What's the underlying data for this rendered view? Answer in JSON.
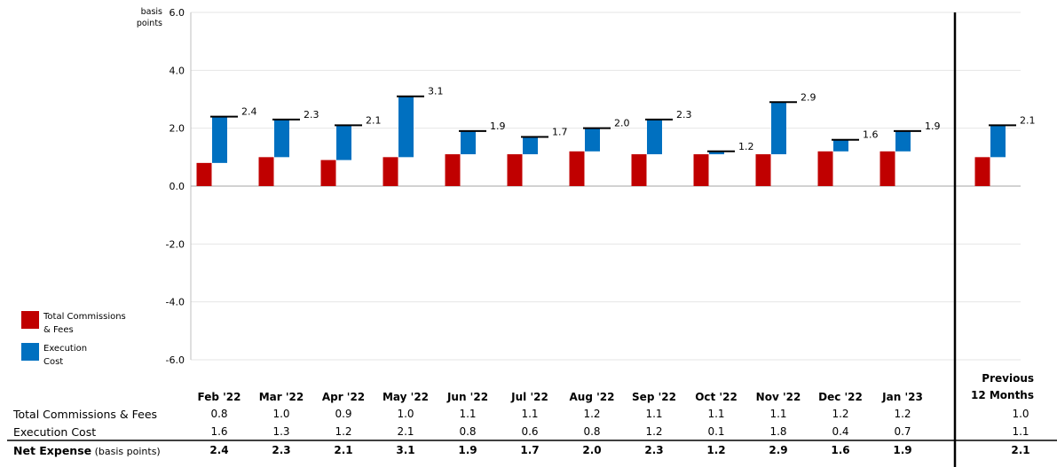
{
  "chart_data": {
    "type": "bar",
    "stacked": true,
    "unit_label": [
      "basis",
      "points"
    ],
    "ylim": [
      -6.0,
      6.0
    ],
    "y_ticks": [
      "6.0",
      "4.0",
      "2.0",
      "0.0",
      "-2.0",
      "-4.0",
      "-6.0"
    ],
    "categories": [
      "Feb '22",
      "Mar '22",
      "Apr '22",
      "May '22",
      "Jun '22",
      "Jul '22",
      "Aug '22",
      "Sep '22",
      "Oct '22",
      "Nov '22",
      "Dec '22",
      "Jan '23"
    ],
    "series": [
      {
        "name": "Total Commissions & Fees",
        "color": "#c00000",
        "values": [
          0.8,
          1.0,
          0.9,
          1.0,
          1.1,
          1.1,
          1.2,
          1.1,
          1.1,
          1.1,
          1.2,
          1.2
        ]
      },
      {
        "name": "Execution Cost",
        "color": "#0070c0",
        "values": [
          1.6,
          1.3,
          1.2,
          2.1,
          0.8,
          0.6,
          0.8,
          1.2,
          0.1,
          1.8,
          0.4,
          0.7
        ]
      }
    ],
    "net_labels": [
      "2.4",
      "2.3",
      "2.1",
      "3.1",
      "1.9",
      "1.7",
      "2.0",
      "2.3",
      "1.2",
      "2.9",
      "1.6",
      "1.9"
    ],
    "previous_12_months": {
      "header_line1": "Previous",
      "header_line2": "12 Months",
      "commissions": 1.0,
      "execution": 1.1,
      "net_label": "2.1"
    },
    "legend": [
      {
        "line1": "Total Commissions",
        "line2": "& Fees",
        "color": "#c00000"
      },
      {
        "line1": "Execution",
        "line2": "Cost",
        "color": "#0070c0"
      }
    ]
  },
  "table": {
    "rows": [
      {
        "label": "Total Commissions & Fees",
        "bold": false,
        "values": [
          "0.8",
          "1.0",
          "0.9",
          "1.0",
          "1.1",
          "1.1",
          "1.2",
          "1.1",
          "1.1",
          "1.1",
          "1.2",
          "1.2"
        ],
        "prev": "1.0"
      },
      {
        "label": "Execution Cost",
        "bold": false,
        "values": [
          "1.6",
          "1.3",
          "1.2",
          "2.1",
          "0.8",
          "0.6",
          "0.8",
          "1.2",
          "0.1",
          "1.8",
          "0.4",
          "0.7"
        ],
        "prev": "1.1"
      },
      {
        "label": "Net Expense",
        "label_suffix": "(basis points)",
        "bold": true,
        "values": [
          "2.4",
          "2.3",
          "2.1",
          "3.1",
          "1.9",
          "1.7",
          "2.0",
          "2.3",
          "1.2",
          "2.9",
          "1.6",
          "1.9"
        ],
        "prev": "2.1"
      }
    ]
  }
}
